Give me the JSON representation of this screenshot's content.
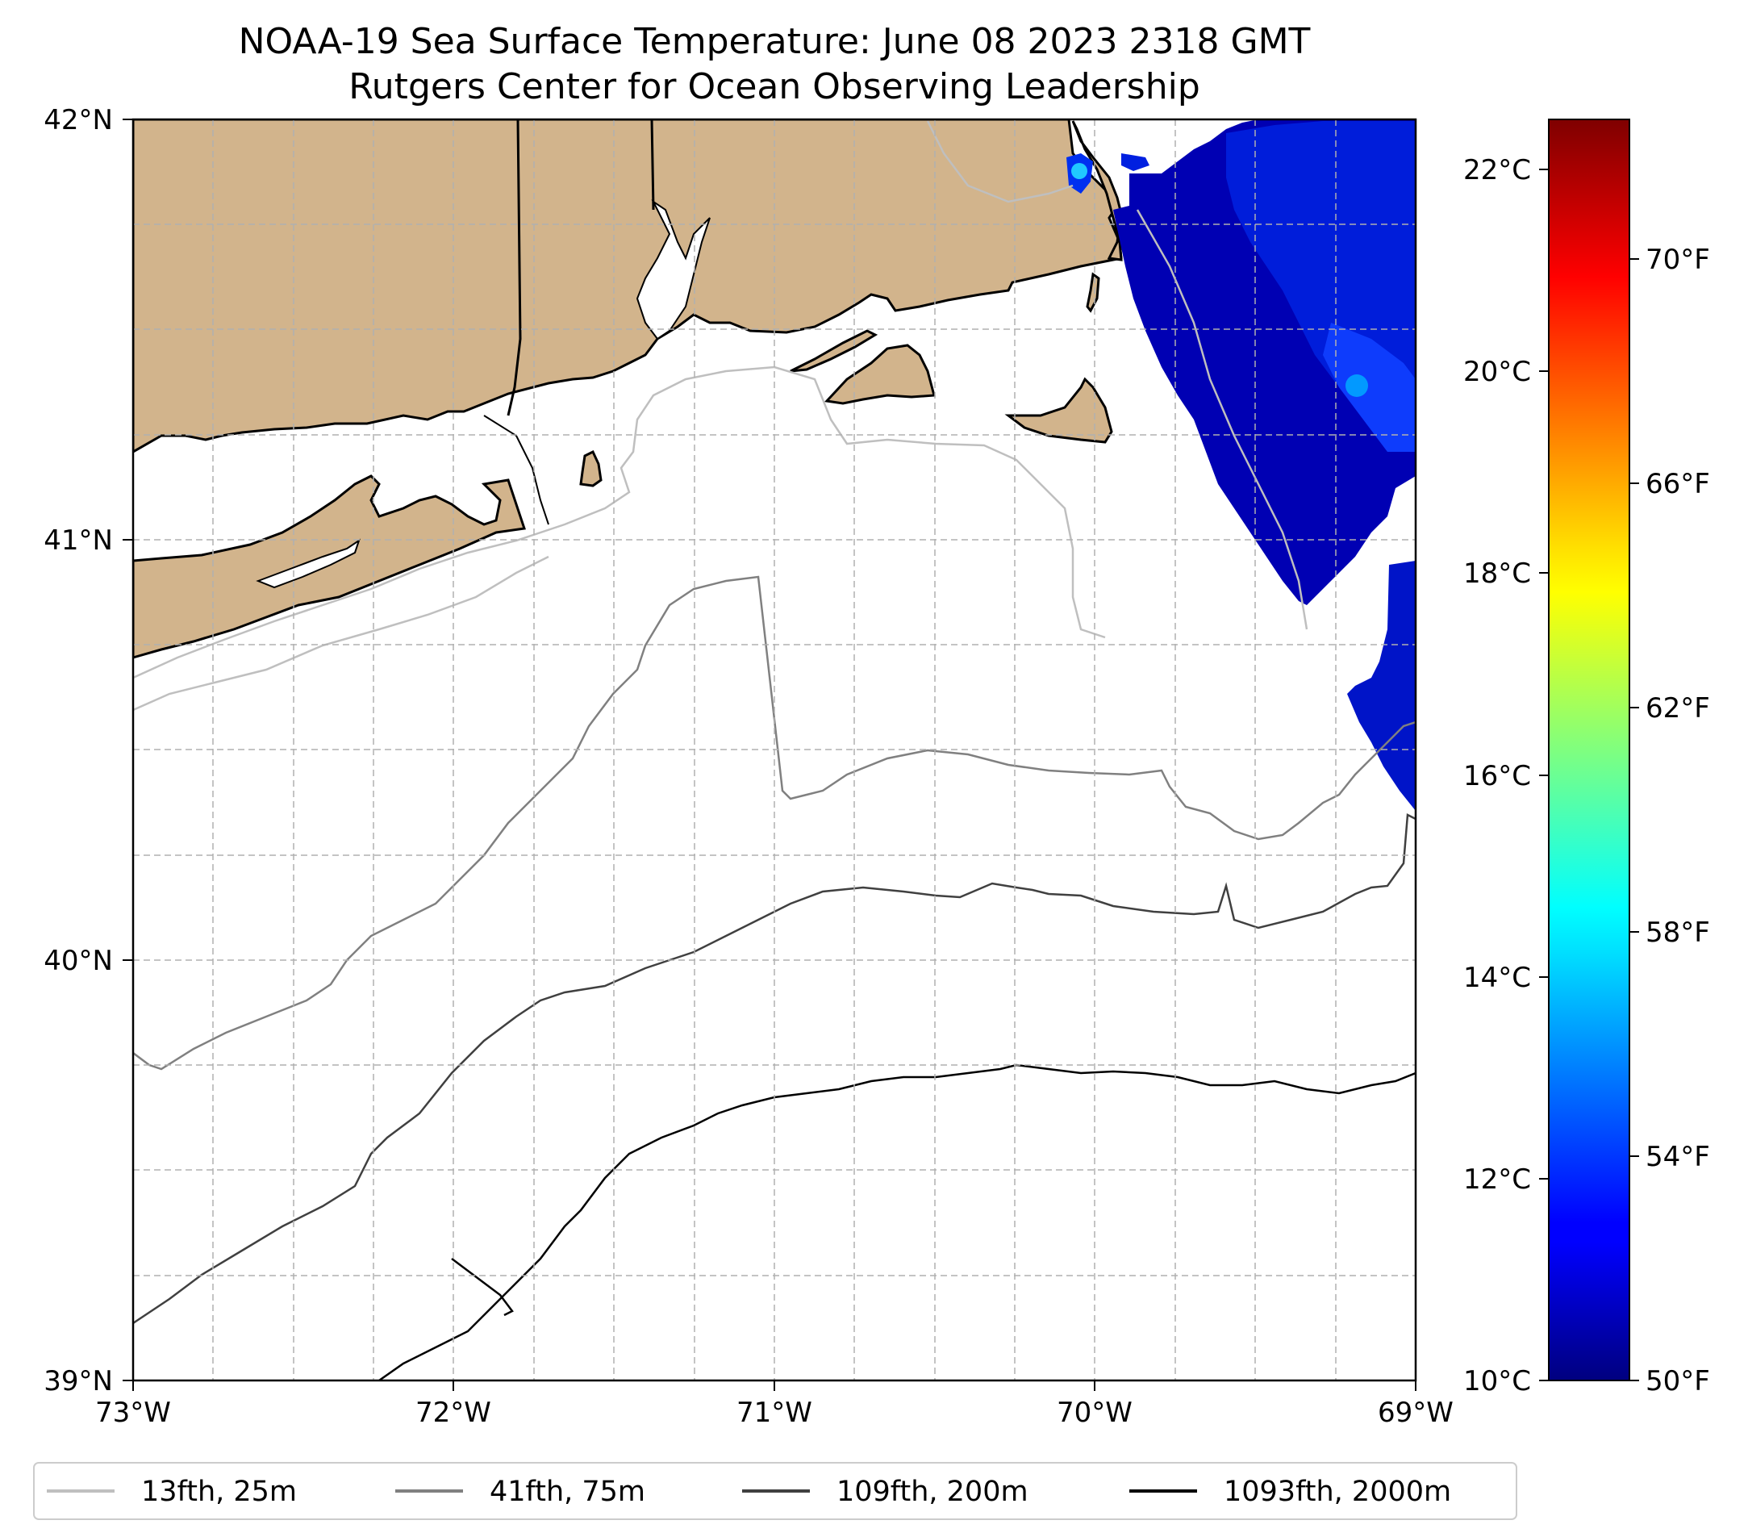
{
  "title": {
    "line1": "NOAA-19 Sea Surface Temperature: June 08 2023 2318 GMT",
    "line2": "Rutgers Center for Ocean Observing Leadership"
  },
  "map": {
    "lon_range": [
      -73,
      -69
    ],
    "lat_range": [
      39,
      42
    ],
    "lon_ticks": [
      "73°W",
      "72°W",
      "71°W",
      "70°W",
      "69°W"
    ],
    "lat_ticks": [
      "39°N",
      "40°N",
      "41°N",
      "42°N"
    ],
    "grid": true,
    "land_color": "#d2b48c"
  },
  "colorbar": {
    "colormap": "jet",
    "celsius_range": [
      10,
      22.5
    ],
    "celsius_ticks": [
      "10°C",
      "12°C",
      "14°C",
      "16°C",
      "18°C",
      "20°C",
      "22°C"
    ],
    "fahrenheit_ticks": [
      "50°F",
      "54°F",
      "58°F",
      "62°F",
      "66°F",
      "70°F"
    ]
  },
  "legend": {
    "placement": "bottom",
    "items": [
      {
        "label": "13fth, 25m",
        "color": "#bfbfbf"
      },
      {
        "label": "41fth, 75m",
        "color": "#808080"
      },
      {
        "label": "109fth, 200m",
        "color": "#404040"
      },
      {
        "label": "1093fth, 2000m",
        "color": "#000000"
      }
    ]
  }
}
